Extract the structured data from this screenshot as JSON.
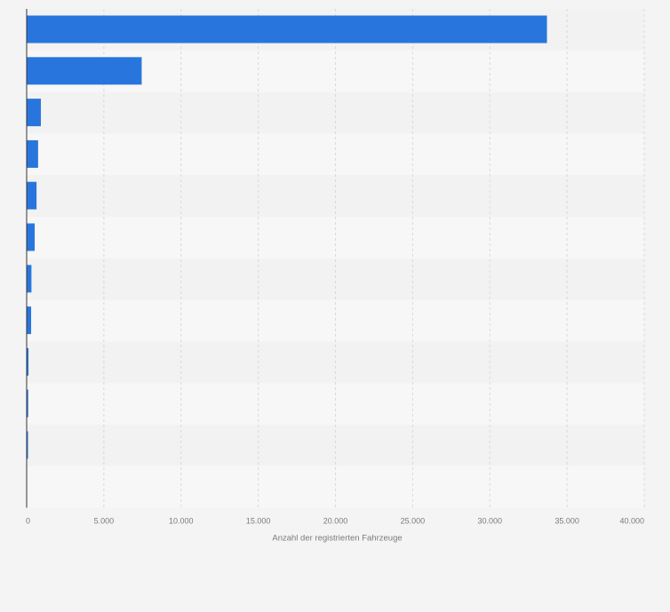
{
  "chart_data": {
    "type": "bar",
    "orientation": "horizontal",
    "categories": [
      "",
      "",
      "",
      "",
      "",
      "",
      "",
      "",
      "",
      "",
      ""
    ],
    "values": [
      33700,
      7450,
      920,
      740,
      640,
      520,
      310,
      290,
      120,
      100,
      60
    ],
    "xlabel": "Anzahl der registrierten Fahrzeuge",
    "ylabel": "",
    "xlim": [
      0,
      40000
    ],
    "xticks": [
      0,
      5000,
      10000,
      15000,
      20000,
      25000,
      30000,
      35000,
      40000
    ],
    "xtick_labels": [
      "0",
      "5.000",
      "10.000",
      "15.000",
      "20.000",
      "25.000",
      "30.000",
      "35.000",
      "40.000"
    ],
    "grid": true,
    "legend": "none",
    "colors": {
      "bar": "#2876dd",
      "band_light": "#f7f7f7",
      "band_dark": "#f2f2f2",
      "page_background": "#f4f4f4",
      "gridline": "#d9d9d9",
      "axis_line": "#333333",
      "tick_text": "#7a7a7a"
    }
  }
}
